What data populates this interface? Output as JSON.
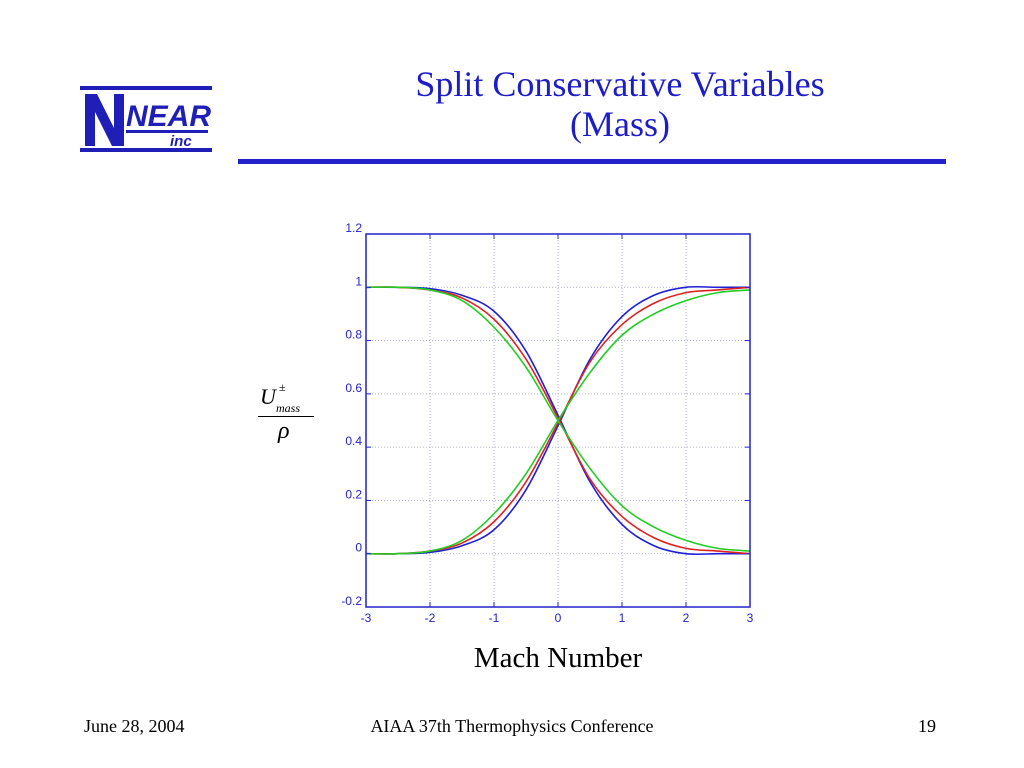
{
  "logo": {
    "main": "NEAR",
    "sub": "inc"
  },
  "slide": {
    "title_line1": "Split Conservative Variables",
    "title_line2": "(Mass)"
  },
  "chart_data": {
    "type": "line",
    "title": "",
    "xlabel": "Mach Number",
    "ylabel": {
      "numerator": "U",
      "superscript": "±",
      "subscript": "mass",
      "denominator": "ρ"
    },
    "xlim": [
      -3,
      3
    ],
    "ylim": [
      -0.2,
      1.2
    ],
    "xticks": [
      -3,
      -2,
      -1,
      0,
      1,
      2,
      3
    ],
    "xtick_labels": [
      "-3",
      "-2",
      "-1",
      "0",
      "1",
      "2",
      "3"
    ],
    "yticks": [
      -0.2,
      0,
      0.2,
      0.4,
      0.6,
      0.8,
      1,
      1.2
    ],
    "ytick_labels": [
      "-0.2",
      "0",
      "0.2",
      "0.4",
      "0.6",
      "0.8",
      "1",
      "1.2"
    ],
    "grid": true,
    "legend": "none",
    "x": [
      -3,
      -2.5,
      -2,
      -1.5,
      -1,
      -0.5,
      0,
      0.5,
      1,
      1.5,
      2,
      2.5,
      3
    ],
    "series": [
      {
        "color": "#1f1fd6",
        "values": [
          0.0,
          0.0,
          0.005,
          0.03,
          0.09,
          0.24,
          0.48,
          0.73,
          0.89,
          0.97,
          1.0,
          1.0,
          1.0
        ]
      },
      {
        "color": "#1f1fd6",
        "values": [
          1.0,
          1.0,
          0.995,
          0.97,
          0.91,
          0.76,
          0.52,
          0.27,
          0.11,
          0.03,
          0.0,
          0.0,
          0.0
        ]
      },
      {
        "color": "#dd2222",
        "values": [
          0.0,
          0.0,
          0.01,
          0.04,
          0.12,
          0.27,
          0.49,
          0.72,
          0.86,
          0.94,
          0.98,
          0.99,
          1.0
        ]
      },
      {
        "color": "#dd2222",
        "values": [
          1.0,
          1.0,
          0.99,
          0.96,
          0.88,
          0.73,
          0.51,
          0.28,
          0.14,
          0.06,
          0.02,
          0.01,
          0.0
        ]
      },
      {
        "color": "#22cc22",
        "values": [
          0.0,
          0.0,
          0.01,
          0.05,
          0.15,
          0.3,
          0.5,
          0.68,
          0.82,
          0.9,
          0.95,
          0.98,
          0.99
        ]
      },
      {
        "color": "#22cc22",
        "values": [
          1.0,
          1.0,
          0.99,
          0.95,
          0.85,
          0.7,
          0.5,
          0.32,
          0.18,
          0.1,
          0.05,
          0.02,
          0.01
        ]
      }
    ]
  },
  "footer": {
    "date": "June 28, 2004",
    "conference": "AIAA 37th Thermophysics Conference",
    "page": "19"
  }
}
